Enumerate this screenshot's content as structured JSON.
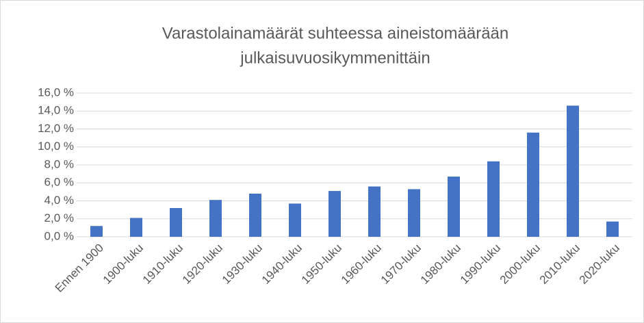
{
  "chart_data": {
    "type": "bar",
    "title": [
      "Varastolainamäärät suhteessa aineistomäärään",
      "julkaisuvuosikymmenittäin"
    ],
    "categories": [
      "Ennen 1900",
      "1900-luku",
      "1910-luku",
      "1920-luku",
      "1930-luku",
      "1940-luku",
      "1950-luku",
      "1960-luku",
      "1970-luku",
      "1980-luku",
      "1990-luku",
      "2000-luku",
      "2010-luku",
      "2020-luku"
    ],
    "values": [
      1.2,
      2.1,
      3.2,
      4.1,
      4.8,
      3.7,
      5.1,
      5.6,
      5.3,
      6.7,
      8.4,
      11.6,
      14.6,
      1.7
    ],
    "color": "#4472c4",
    "ylim": [
      0,
      16
    ],
    "yticks": [
      {
        "value": 0,
        "label": "0,0 %"
      },
      {
        "value": 2,
        "label": "2,0 %"
      },
      {
        "value": 4,
        "label": "4,0 %"
      },
      {
        "value": 6,
        "label": "6,0 %"
      },
      {
        "value": 8,
        "label": "8,0 %"
      },
      {
        "value": 10,
        "label": "10,0 %"
      },
      {
        "value": 12,
        "label": "12,0 %"
      },
      {
        "value": 14,
        "label": "14,0 %"
      },
      {
        "value": 16,
        "label": "16,0 %"
      }
    ],
    "grid": true
  }
}
